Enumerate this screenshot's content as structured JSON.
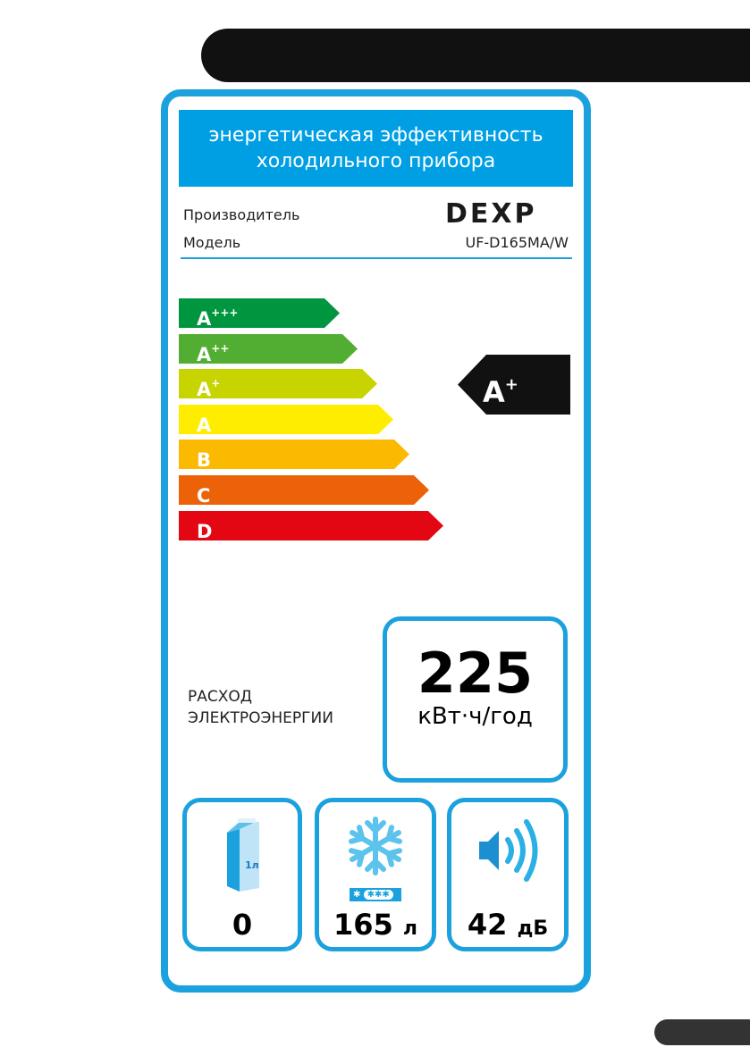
{
  "header": {
    "line1": "энергетическая эффективность",
    "line2": "холодильного прибора"
  },
  "manufacturer": {
    "label": "Производитель",
    "value": "DEXP"
  },
  "model": {
    "label": "Модель",
    "value": "UF-D165MA/W"
  },
  "classes": [
    {
      "letter": "A",
      "plus": "+++",
      "color": "#009640"
    },
    {
      "letter": "A",
      "plus": "++",
      "color": "#52ae32"
    },
    {
      "letter": "A",
      "plus": "+",
      "color": "#c8d400"
    },
    {
      "letter": "A",
      "plus": "",
      "color": "#ffed00"
    },
    {
      "letter": "B",
      "plus": "",
      "color": "#fbba00"
    },
    {
      "letter": "C",
      "plus": "",
      "color": "#eb6209"
    },
    {
      "letter": "D",
      "plus": "",
      "color": "#e30613"
    }
  ],
  "rating": {
    "letter": "A",
    "plus": "+"
  },
  "consumption": {
    "label1": "РАСХОД",
    "label2": "ЭЛЕКТРОЭНЕРГИИ",
    "value": "225",
    "unit": "кВт·ч/год"
  },
  "fridge": {
    "icon": "milk-carton-icon",
    "carton_label": "1л",
    "value": "0"
  },
  "freezer": {
    "icon": "snowflake-icon",
    "value": "165",
    "unit": "л"
  },
  "noise": {
    "icon": "speaker-icon",
    "value": "42",
    "unit": "дБ"
  },
  "accent": "#1ba1dd"
}
